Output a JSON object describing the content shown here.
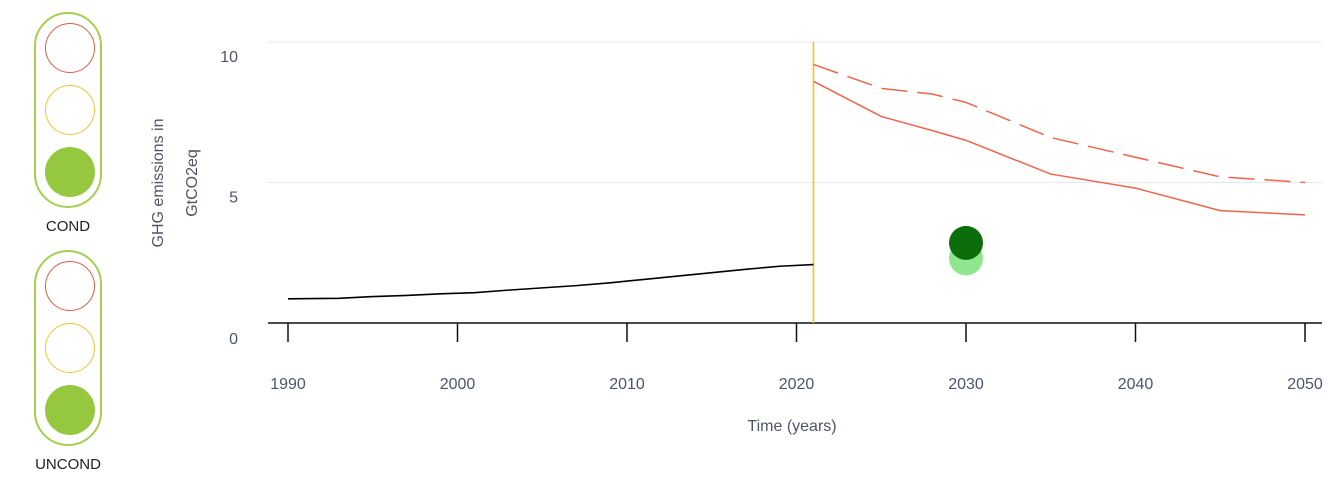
{
  "indicators": [
    {
      "label": "COND",
      "status": "green"
    },
    {
      "label": "UNCOND",
      "status": "green"
    }
  ],
  "colors": {
    "historical": "#000000",
    "projection": "#f06449",
    "milestone": "#f5c518",
    "target_dark": "#0b6e0b",
    "target_light": "#8ee68e",
    "lamp_green": "#95c83e"
  },
  "chart_data": {
    "type": "line",
    "xlabel": "Time (years)",
    "ylabel": "GHG emissions in GtCO2eq",
    "xlim": [
      1990,
      2050
    ],
    "ylim": [
      0,
      10
    ],
    "xticks": [
      "1990",
      "2000",
      "2010",
      "2020",
      "2030",
      "2040",
      "2050"
    ],
    "yticks": [
      "0",
      "5",
      "10"
    ],
    "milestone_year": 2021,
    "series": [
      {
        "style": "solid",
        "color": "#000000",
        "x": [
          1990,
          1993,
          1995,
          1997,
          1999,
          2001,
          2003,
          2005,
          2007,
          2009,
          2011,
          2013,
          2015,
          2017,
          2019,
          2021
        ],
        "y": [
          0.86,
          0.88,
          0.94,
          0.98,
          1.04,
          1.08,
          1.17,
          1.25,
          1.33,
          1.43,
          1.55,
          1.67,
          1.79,
          1.91,
          2.02,
          2.08
        ]
      },
      {
        "style": "dashed",
        "color": "#f06449",
        "x": [
          2021,
          2025,
          2028,
          2030,
          2035,
          2040,
          2045,
          2050
        ],
        "y": [
          9.2,
          8.35,
          8.15,
          7.85,
          6.6,
          5.9,
          5.2,
          5.0
        ]
      },
      {
        "style": "solid",
        "color": "#f06449",
        "x": [
          2021,
          2025,
          2028,
          2030,
          2035,
          2040,
          2045,
          2050
        ],
        "y": [
          8.6,
          7.35,
          6.85,
          6.5,
          5.3,
          4.8,
          4.0,
          3.85
        ]
      }
    ],
    "points": [
      {
        "x": 2030,
        "y": 2.3,
        "color": "#8ee68e"
      },
      {
        "x": 2030,
        "y": 2.85,
        "color": "#0b6e0b"
      }
    ]
  }
}
